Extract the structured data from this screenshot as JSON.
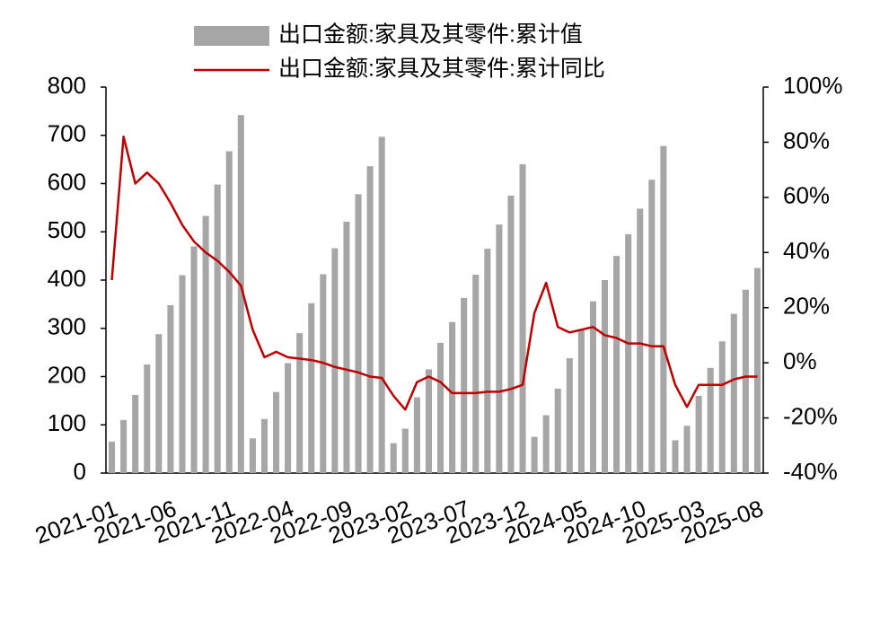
{
  "chart_data": {
    "type": "bar_line",
    "categories": [
      "2021-01",
      null,
      null,
      null,
      null,
      "2021-06",
      null,
      null,
      null,
      null,
      "2021-11",
      null,
      null,
      null,
      null,
      "2022-04",
      null,
      null,
      null,
      null,
      "2022-09",
      null,
      null,
      null,
      null,
      "2023-02",
      null,
      null,
      null,
      null,
      "2023-07",
      null,
      null,
      null,
      null,
      "2023-12",
      null,
      null,
      null,
      null,
      "2024-05",
      null,
      null,
      null,
      null,
      "2024-10",
      null,
      null,
      null,
      null,
      "2025-03",
      null,
      null,
      null,
      null,
      "2025-08"
    ],
    "series": [
      {
        "name": "出口金额:家具及其零件:累计值",
        "type": "bar",
        "color": "#a6a6a6",
        "values": [
          65,
          110,
          162,
          225,
          288,
          348,
          410,
          470,
          533,
          598,
          667,
          742,
          72,
          112,
          168,
          228,
          290,
          352,
          412,
          466,
          521,
          578,
          636,
          697,
          62,
          92,
          157,
          215,
          270,
          313,
          363,
          411,
          465,
          515,
          575,
          640,
          75,
          120,
          175,
          238,
          296,
          356,
          400,
          450,
          495,
          548,
          608,
          678,
          68,
          98,
          160,
          218,
          273,
          330,
          380,
          425
        ]
      },
      {
        "name": "出口金额:家具及其零件:累计同比",
        "type": "line",
        "axis": "y2",
        "color": "#c00000",
        "values": [
          30,
          82,
          65,
          69,
          65,
          58,
          50,
          44,
          40,
          37,
          33,
          28,
          12,
          2,
          4,
          2,
          1.5,
          1,
          0,
          -1.5,
          -2.5,
          -3.5,
          -5,
          -5.5,
          -12,
          -17,
          -7,
          -5,
          -7,
          -11,
          -11,
          -11,
          -10.5,
          -10.5,
          -9.5,
          -8,
          18,
          29,
          13,
          11,
          12,
          13,
          10,
          9,
          7,
          7,
          6,
          6,
          -8,
          -16,
          -8,
          -8,
          -8,
          -6,
          -5,
          -5
        ]
      }
    ],
    "ylim": [
      0,
      800
    ],
    "yticks": [
      0,
      100,
      200,
      300,
      400,
      500,
      600,
      700,
      800
    ],
    "y2lim": [
      -40,
      100
    ],
    "y2ticks": [
      {
        "value": -40,
        "label": "-40%"
      },
      {
        "value": -20,
        "label": "-20%"
      },
      {
        "value": 0,
        "label": "0%"
      },
      {
        "value": 20,
        "label": "20%"
      },
      {
        "value": 40,
        "label": "40%"
      },
      {
        "value": 60,
        "label": "60%"
      },
      {
        "value": 80,
        "label": "80%"
      },
      {
        "value": 100,
        "label": "100%"
      }
    ],
    "legend": "top"
  }
}
